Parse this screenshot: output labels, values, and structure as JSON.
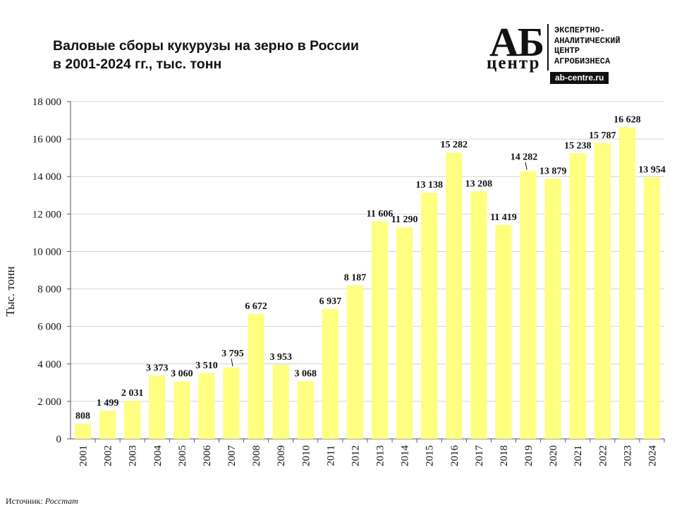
{
  "header": {
    "title_line1": "Валовые сборы кукурузы на зерно в России",
    "title_line2": "в 2001-2024 гг., тыс. тонн"
  },
  "logo": {
    "mark_top": "АБ",
    "mark_bottom": "центр",
    "description": "ЭКСПЕРТНО-\nАНАЛИТИЧЕСКИЙ\nЦЕНТР\nАГРОБИЗНЕСА",
    "site": "ab-centre.ru"
  },
  "footer": {
    "source_label": "Источник:",
    "source_name": "Росстат"
  },
  "chart_data": {
    "type": "bar",
    "title": "Валовые сборы кукурузы на зерно в России в 2001-2024 гг., тыс. тонн",
    "xlabel": "",
    "ylabel": "Тыс. тонн",
    "ylim": [
      0,
      18000
    ],
    "yticks": [
      0,
      2000,
      4000,
      6000,
      8000,
      10000,
      12000,
      14000,
      16000,
      18000
    ],
    "ytick_labels": [
      "0",
      "2 000",
      "4 000",
      "6 000",
      "8 000",
      "10 000",
      "12 000",
      "14 000",
      "16 000",
      "18 000"
    ],
    "grid": true,
    "bar_color": "#ffff80",
    "categories": [
      "2001",
      "2002",
      "2003",
      "2004",
      "2005",
      "2006",
      "2007",
      "2008",
      "2009",
      "2010",
      "2011",
      "2012",
      "2013",
      "2014",
      "2015",
      "2016",
      "2017",
      "2018",
      "2019",
      "2020",
      "2021",
      "2022",
      "2023",
      "2024"
    ],
    "values": [
      808,
      1499,
      2031,
      3373,
      3060,
      3510,
      3795,
      6672,
      3953,
      3068,
      6937,
      8187,
      11606,
      11290,
      13138,
      15282,
      13208,
      11419,
      14282,
      13879,
      15238,
      15787,
      16628,
      13954
    ],
    "data_labels": [
      "808",
      "1 499",
      "2 031",
      "3 373",
      "3 060",
      "3 510",
      "3 795",
      "6 672",
      "3 953",
      "3 068",
      "6 937",
      "8 187",
      "11 606",
      "11 290",
      "13 138",
      "15 282",
      "13 208",
      "11 419",
      "14 282",
      "13 879",
      "15 238",
      "15 787",
      "16 628",
      "13 954"
    ]
  }
}
